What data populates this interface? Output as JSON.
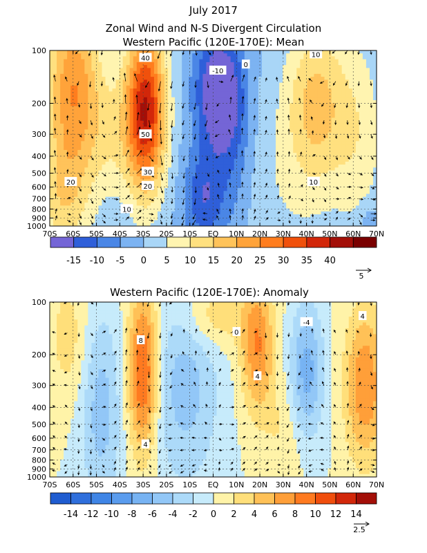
{
  "chart_data": [
    {
      "type": "heatmap",
      "title_lines": [
        "July 2017",
        "Zonal Wind and N-S Divergent Circulation",
        "Western Pacific (120E-170E): Mean"
      ],
      "x_ticks": [
        "70S",
        "60S",
        "50S",
        "40S",
        "30S",
        "20S",
        "10S",
        "EQ",
        "10N",
        "20N",
        "30N",
        "40N",
        "50N",
        "60N",
        "70N"
      ],
      "y_ticks": [
        "100",
        "200",
        "300",
        "400",
        "500",
        "600",
        "700",
        "800",
        "900",
        "1000"
      ],
      "y_tick_values": [
        100,
        200,
        300,
        400,
        500,
        600,
        700,
        800,
        900,
        1000
      ],
      "xlim": [
        -70,
        70
      ],
      "ylim": [
        1000,
        100
      ],
      "y_scale": "log",
      "colorbar_levels": [
        -20,
        -15,
        -10,
        -5,
        0,
        5,
        10,
        15,
        20,
        25,
        30,
        35,
        40,
        45
      ],
      "colorbar_labels": [
        "-15",
        "-10",
        "-5",
        "0",
        "5",
        "10",
        "15",
        "20",
        "25",
        "30",
        "35",
        "40"
      ],
      "colorbar_colors": [
        "#7465d6",
        "#2f5fd9",
        "#4a86e6",
        "#7cb3f2",
        "#a9d6f7",
        "#fff4b0",
        "#ffe07f",
        "#ffc35a",
        "#ffa33a",
        "#ff7d1e",
        "#f0510c",
        "#d2270a",
        "#a30f08",
        "#7a0000"
      ],
      "vector_ref_label": "5",
      "contour_labels": [
        {
          "text": "40",
          "lat": -29,
          "p": 110
        },
        {
          "text": "50",
          "lat": -29,
          "p": 300
        },
        {
          "text": "30",
          "lat": -28,
          "p": 490
        },
        {
          "text": "20",
          "lat": -28,
          "p": 590
        },
        {
          "text": "10",
          "lat": -37,
          "p": 800
        },
        {
          "text": "20",
          "lat": -61,
          "p": 560
        },
        {
          "text": "-10",
          "lat": 2,
          "p": 130
        },
        {
          "text": "0",
          "lat": 14,
          "p": 120
        },
        {
          "text": "10",
          "lat": 44,
          "p": 105
        },
        {
          "text": "10",
          "lat": 43,
          "p": 560
        }
      ],
      "features": [
        {
          "lat": -29,
          "p": 220,
          "amp": 40,
          "slat": 6,
          "sp": 0.75
        },
        {
          "lat": -60,
          "p": 160,
          "amp": 24,
          "slat": 8,
          "sp": 0.8
        },
        {
          "lat": -64,
          "p": 700,
          "amp": 12,
          "slat": 8,
          "sp": 0.6
        },
        {
          "lat": -44,
          "p": 300,
          "amp": 8,
          "slat": 8,
          "sp": 0.6
        },
        {
          "lat": 2,
          "p": 170,
          "amp": -22,
          "slat": 7,
          "sp": 0.55
        },
        {
          "lat": -4,
          "p": 700,
          "amp": -14,
          "slat": 6,
          "sp": 0.45
        },
        {
          "lat": 8,
          "p": 350,
          "amp": -8,
          "slat": 6,
          "sp": 0.8
        },
        {
          "lat": 44,
          "p": 200,
          "amp": 16,
          "slat": 9,
          "sp": 0.75
        },
        {
          "lat": 62,
          "p": 300,
          "amp": 8,
          "slat": 8,
          "sp": 0.9
        },
        {
          "lat": 30,
          "p": 600,
          "amp": 4,
          "slat": 14,
          "sp": 0.9
        },
        {
          "lat": 67,
          "p": 950,
          "amp": -6,
          "slat": 3,
          "sp": 0.15
        }
      ],
      "vector_scale": 5
    },
    {
      "type": "heatmap",
      "title_lines": [
        "Western Pacific (120E-170E): Anomaly"
      ],
      "x_ticks": [
        "70S",
        "60S",
        "50S",
        "40S",
        "30S",
        "20S",
        "10S",
        "EQ",
        "10N",
        "20N",
        "30N",
        "40N",
        "50N",
        "60N",
        "70N"
      ],
      "y_ticks": [
        "100",
        "200",
        "300",
        "400",
        "500",
        "600",
        "700",
        "800",
        "900",
        "1000"
      ],
      "y_tick_values": [
        100,
        200,
        300,
        400,
        500,
        600,
        700,
        800,
        900,
        1000
      ],
      "xlim": [
        -70,
        70
      ],
      "ylim": [
        1000,
        100
      ],
      "y_scale": "log",
      "colorbar_levels": [
        -16,
        -14,
        -12,
        -10,
        -8,
        -6,
        -4,
        -2,
        0,
        2,
        4,
        6,
        8,
        10,
        12,
        14,
        16
      ],
      "colorbar_labels": [
        "-14",
        "-12",
        "-10",
        "-8",
        "-6",
        "-4",
        "-2",
        "0",
        "2",
        "4",
        "6",
        "8",
        "10",
        "12",
        "14"
      ],
      "colorbar_colors": [
        "#1f5cd0",
        "#2f6fdc",
        "#3f85e6",
        "#5a9cee",
        "#77b3f3",
        "#92c7f7",
        "#acdaf9",
        "#c7ebfb",
        "#fff3a8",
        "#ffdf7a",
        "#ffc157",
        "#ff9f39",
        "#ff7a20",
        "#f04e0d",
        "#d2270a",
        "#a30f08"
      ],
      "vector_ref_label": "2.5",
      "contour_labels": [
        {
          "text": "8",
          "lat": -31,
          "p": 165
        },
        {
          "text": "4",
          "lat": -29,
          "p": 650
        },
        {
          "text": "0",
          "lat": 10,
          "p": 148
        },
        {
          "text": "4",
          "lat": 19,
          "p": 265
        },
        {
          "text": "-4",
          "lat": 40,
          "p": 130
        },
        {
          "text": "4",
          "lat": 64,
          "p": 120
        }
      ],
      "features": [
        {
          "lat": -30,
          "p": 250,
          "amp": 11,
          "slat": 4.5,
          "sp": 0.75
        },
        {
          "lat": -62,
          "p": 160,
          "amp": 3,
          "slat": 6,
          "sp": 0.6
        },
        {
          "lat": -48,
          "p": 420,
          "amp": -5,
          "slat": 6,
          "sp": 0.9
        },
        {
          "lat": -12,
          "p": 300,
          "amp": -5,
          "slat": 10,
          "sp": 0.9
        },
        {
          "lat": 19,
          "p": 180,
          "amp": 8,
          "slat": 5,
          "sp": 0.6
        },
        {
          "lat": 40,
          "p": 250,
          "amp": -7,
          "slat": 5,
          "sp": 0.6
        },
        {
          "lat": 65,
          "p": 300,
          "amp": 8,
          "slat": 6,
          "sp": 0.7
        },
        {
          "lat": 30,
          "p": 600,
          "amp": 2,
          "slat": 6,
          "sp": 0.6
        },
        {
          "lat": 0,
          "p": 120,
          "amp": 4,
          "slat": 10,
          "sp": 0.3
        }
      ],
      "vector_scale": 2.5
    }
  ]
}
